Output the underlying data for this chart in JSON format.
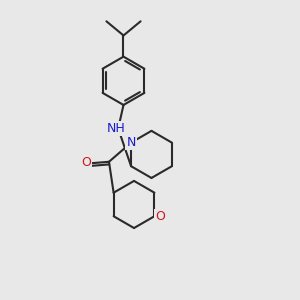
{
  "bg_color": "#e8e8e8",
  "bond_color": "#2a2a2a",
  "N_color": "#1a1acc",
  "O_color": "#cc1a1a",
  "line_width": 1.5,
  "font_size_atom": 9,
  "fig_size": [
    3.0,
    3.0
  ],
  "dpi": 100,
  "xlim": [
    0,
    10
  ],
  "ylim": [
    0,
    10
  ]
}
